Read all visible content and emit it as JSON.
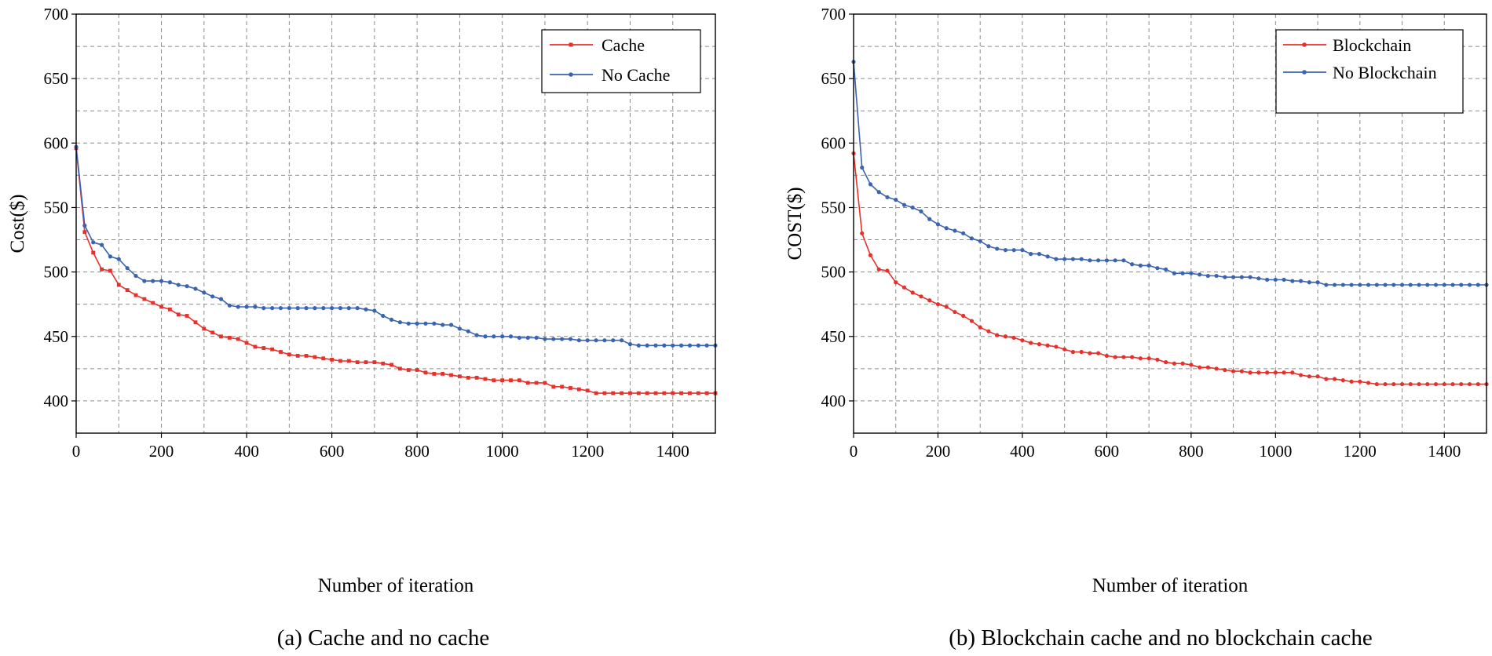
{
  "chart_data": [
    {
      "type": "line",
      "caption": "(a) Cache and no cache",
      "xlabel": "Number of  iteration",
      "ylabel": "Cost($)",
      "xlim": [
        0,
        1500
      ],
      "ylim": [
        375,
        700
      ],
      "xticks": [
        0,
        200,
        400,
        600,
        800,
        1000,
        1200,
        1400
      ],
      "yticks": [
        400,
        450,
        500,
        550,
        600,
        650,
        700
      ],
      "grid": true,
      "legend_position": "top-right",
      "series": [
        {
          "name": "Cache",
          "color": "#e8302a",
          "x": [
            0,
            20,
            40,
            60,
            80,
            100,
            120,
            140,
            160,
            180,
            200,
            220,
            240,
            260,
            280,
            300,
            320,
            340,
            360,
            380,
            400,
            420,
            440,
            460,
            480,
            500,
            520,
            540,
            560,
            580,
            600,
            620,
            640,
            660,
            680,
            700,
            720,
            740,
            760,
            780,
            800,
            820,
            840,
            860,
            880,
            900,
            920,
            940,
            960,
            980,
            1000,
            1020,
            1040,
            1060,
            1080,
            1100,
            1120,
            1140,
            1160,
            1180,
            1200,
            1220,
            1240,
            1260,
            1280,
            1300,
            1320,
            1340,
            1360,
            1380,
            1400,
            1420,
            1440,
            1460,
            1480,
            1500
          ],
          "y": [
            596,
            531,
            515,
            502,
            501,
            490,
            486,
            482,
            479,
            476,
            473,
            471,
            467,
            466,
            461,
            456,
            453,
            450,
            449,
            448,
            445,
            442,
            441,
            440,
            438,
            436,
            435,
            435,
            434,
            433,
            432,
            431,
            431,
            430,
            430,
            430,
            429,
            428,
            425,
            424,
            424,
            422,
            421,
            421,
            420,
            419,
            418,
            418,
            417,
            416,
            416,
            416,
            416,
            414,
            414,
            414,
            411,
            411,
            410,
            409,
            408,
            406,
            406,
            406,
            406,
            406,
            406,
            406,
            406,
            406,
            406,
            406,
            406,
            406,
            406,
            406
          ]
        },
        {
          "name": "No Cache",
          "color": "#3a63b0",
          "x": [
            0,
            20,
            40,
            60,
            80,
            100,
            120,
            140,
            160,
            180,
            200,
            220,
            240,
            260,
            280,
            300,
            320,
            340,
            360,
            380,
            400,
            420,
            440,
            460,
            480,
            500,
            520,
            540,
            560,
            580,
            600,
            620,
            640,
            660,
            680,
            700,
            720,
            740,
            760,
            780,
            800,
            820,
            840,
            860,
            880,
            900,
            920,
            940,
            960,
            980,
            1000,
            1020,
            1040,
            1060,
            1080,
            1100,
            1120,
            1140,
            1160,
            1180,
            1200,
            1220,
            1240,
            1260,
            1280,
            1300,
            1320,
            1340,
            1360,
            1380,
            1400,
            1420,
            1440,
            1460,
            1480,
            1500
          ],
          "y": [
            597,
            536,
            523,
            521,
            512,
            510,
            503,
            497,
            493,
            493,
            493,
            492,
            490,
            489,
            487,
            484,
            481,
            479,
            474,
            473,
            473,
            473,
            472,
            472,
            472,
            472,
            472,
            472,
            472,
            472,
            472,
            472,
            472,
            472,
            471,
            470,
            466,
            463,
            461,
            460,
            460,
            460,
            460,
            459,
            459,
            456,
            454,
            451,
            450,
            450,
            450,
            450,
            449,
            449,
            449,
            448,
            448,
            448,
            448,
            447,
            447,
            447,
            447,
            447,
            447,
            444,
            443,
            443,
            443,
            443,
            443,
            443,
            443,
            443,
            443,
            443
          ]
        }
      ]
    },
    {
      "type": "line",
      "caption": "(b) Blockchain cache and no blockchain cache",
      "xlabel": "Number of  iteration",
      "ylabel": "COST($)",
      "xlim": [
        0,
        1500
      ],
      "ylim": [
        375,
        700
      ],
      "xticks": [
        0,
        200,
        400,
        600,
        800,
        1000,
        1200,
        1400
      ],
      "yticks": [
        400,
        450,
        500,
        550,
        600,
        650,
        700
      ],
      "grid": true,
      "legend_position": "top-right",
      "series": [
        {
          "name": "Blockchain",
          "color": "#e8302a",
          "x": [
            0,
            20,
            40,
            60,
            80,
            100,
            120,
            140,
            160,
            180,
            200,
            220,
            240,
            260,
            280,
            300,
            320,
            340,
            360,
            380,
            400,
            420,
            440,
            460,
            480,
            500,
            520,
            540,
            560,
            580,
            600,
            620,
            640,
            660,
            680,
            700,
            720,
            740,
            760,
            780,
            800,
            820,
            840,
            860,
            880,
            900,
            920,
            940,
            960,
            980,
            1000,
            1020,
            1040,
            1060,
            1080,
            1100,
            1120,
            1140,
            1160,
            1180,
            1200,
            1220,
            1240,
            1260,
            1280,
            1300,
            1320,
            1340,
            1360,
            1380,
            1400,
            1420,
            1440,
            1460,
            1480,
            1500
          ],
          "y": [
            592,
            530,
            513,
            502,
            501,
            492,
            488,
            484,
            481,
            478,
            475,
            473,
            469,
            466,
            462,
            457,
            454,
            451,
            450,
            449,
            447,
            445,
            444,
            443,
            442,
            440,
            438,
            438,
            437,
            437,
            435,
            434,
            434,
            434,
            433,
            433,
            432,
            430,
            429,
            429,
            428,
            426,
            426,
            425,
            424,
            423,
            423,
            422,
            422,
            422,
            422,
            422,
            422,
            420,
            419,
            419,
            417,
            417,
            416,
            415,
            415,
            414,
            413,
            413,
            413,
            413,
            413,
            413,
            413,
            413,
            413,
            413,
            413,
            413,
            413,
            413
          ]
        },
        {
          "name": "No Blockchain",
          "color": "#3a63b0",
          "x": [
            0,
            20,
            40,
            60,
            80,
            100,
            120,
            140,
            160,
            180,
            200,
            220,
            240,
            260,
            280,
            300,
            320,
            340,
            360,
            380,
            400,
            420,
            440,
            460,
            480,
            500,
            520,
            540,
            560,
            580,
            600,
            620,
            640,
            660,
            680,
            700,
            720,
            740,
            760,
            780,
            800,
            820,
            840,
            860,
            880,
            900,
            920,
            940,
            960,
            980,
            1000,
            1020,
            1040,
            1060,
            1080,
            1100,
            1120,
            1140,
            1160,
            1180,
            1200,
            1220,
            1240,
            1260,
            1280,
            1300,
            1320,
            1340,
            1360,
            1380,
            1400,
            1420,
            1440,
            1460,
            1480,
            1500
          ],
          "y": [
            663,
            581,
            568,
            562,
            558,
            556,
            552,
            550,
            547,
            541,
            537,
            534,
            532,
            530,
            526,
            524,
            520,
            518,
            517,
            517,
            517,
            514,
            514,
            512,
            510,
            510,
            510,
            510,
            509,
            509,
            509,
            509,
            509,
            506,
            505,
            505,
            503,
            502,
            499,
            499,
            499,
            498,
            497,
            497,
            496,
            496,
            496,
            496,
            495,
            494,
            494,
            494,
            493,
            493,
            492,
            492,
            490,
            490,
            490,
            490,
            490,
            490,
            490,
            490,
            490,
            490,
            490,
            490,
            490,
            490,
            490,
            490,
            490,
            490,
            490,
            490
          ]
        }
      ]
    }
  ]
}
